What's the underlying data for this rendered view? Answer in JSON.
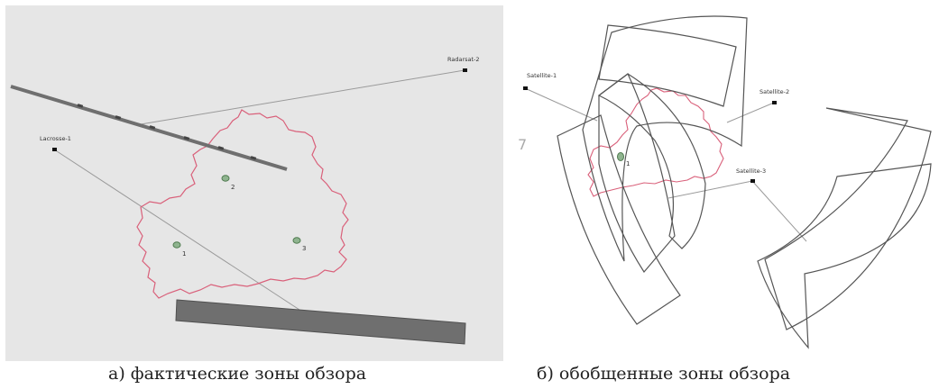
{
  "panels": [
    {
      "caption": "а) фактические зоны обзора",
      "satellites": [
        "Lacrosse-1",
        "Radarsat-2"
      ],
      "targets": [
        "1",
        "2",
        "3"
      ]
    },
    {
      "caption": "б) обобщенные зоны обзора",
      "satellites": [
        "Satellite-1",
        "Satellite-2",
        "Satellite-3"
      ],
      "targets": [
        "1"
      ],
      "stray_mark": "7"
    }
  ],
  "colors": {
    "border": "#d9607a",
    "swath_strip": "#6f6f6f",
    "view_zone": "#555555",
    "target": "#6f9a6f",
    "panel_a_background": "#e6e6e6"
  }
}
